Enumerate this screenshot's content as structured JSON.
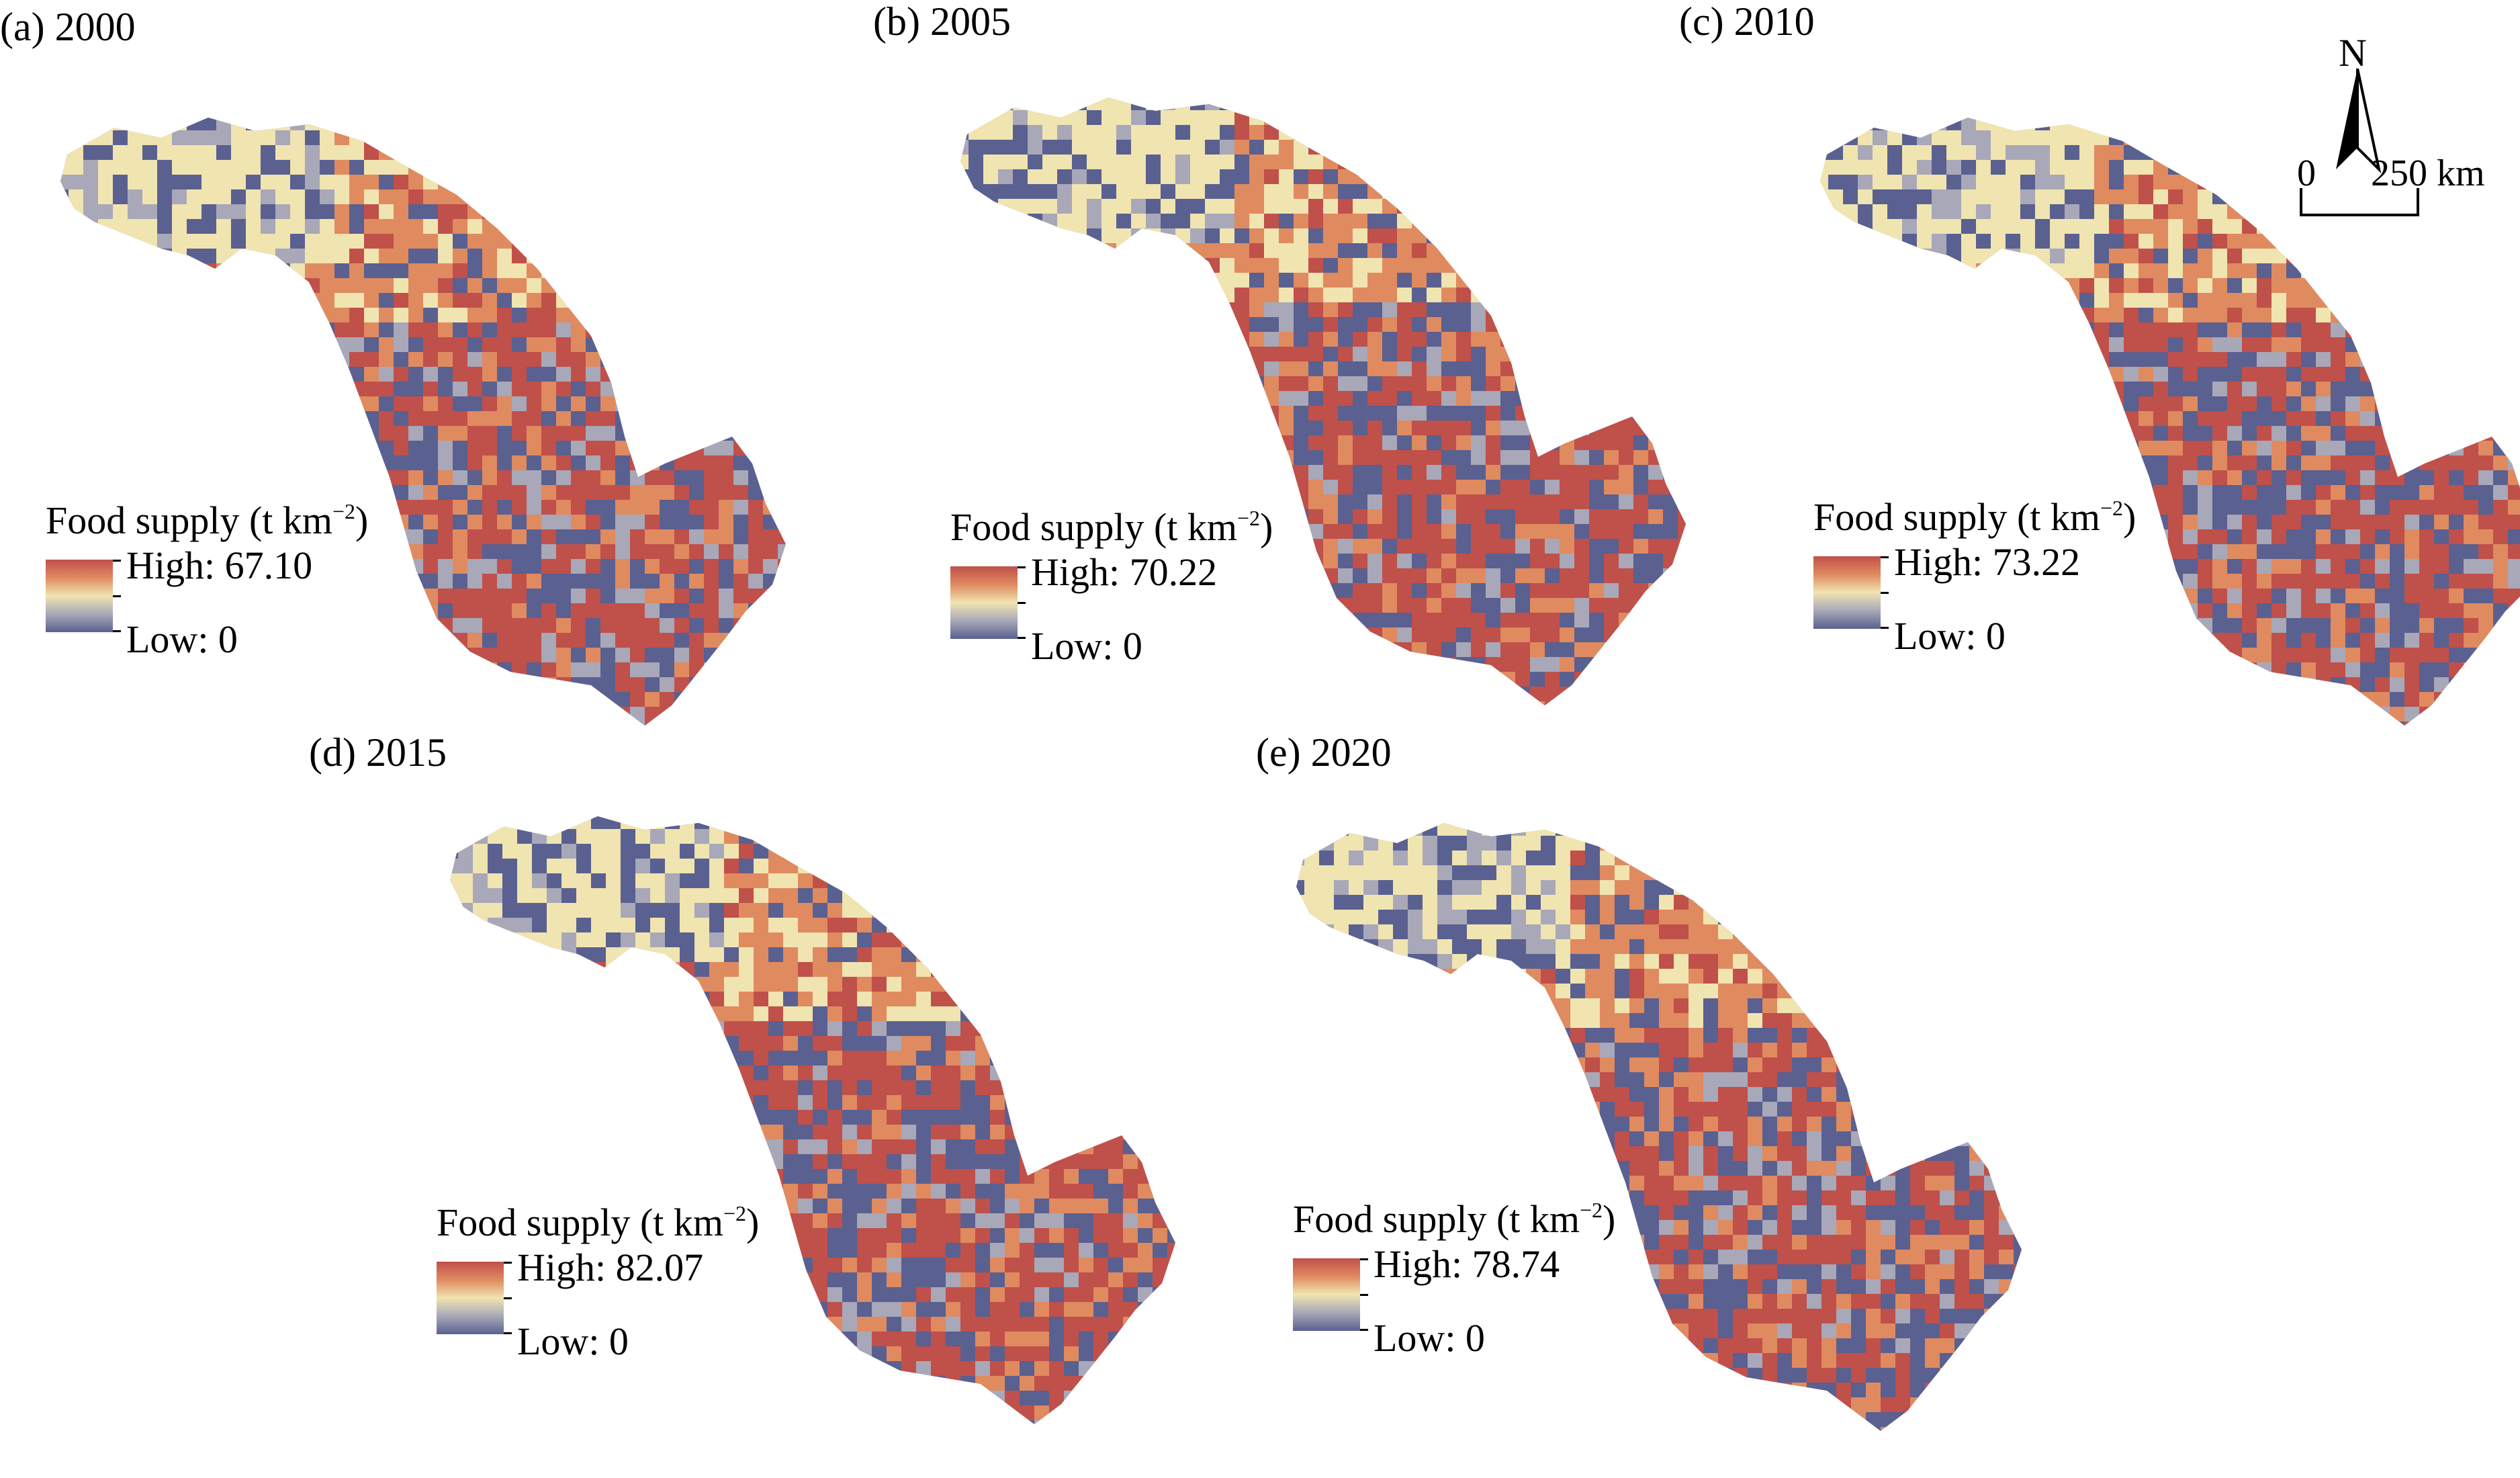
{
  "colors": {
    "high": "#c0504a",
    "mid_high": "#e08a60",
    "mid": "#f0e4b0",
    "mid_low": "#a8a8b8",
    "low": "#5a6090"
  },
  "legend_title_text": "Food supply (t km",
  "legend_title_sup": "−2",
  "legend_title_close": ")",
  "panels": [
    {
      "title": "(a) 2000",
      "high": "High: 67.10",
      "low": "Low: 0"
    },
    {
      "title": "(b) 2005",
      "high": "High: 70.22",
      "low": "Low: 0"
    },
    {
      "title": "(c) 2010",
      "high": "High: 73.22",
      "low": "Low: 0"
    },
    {
      "title": "(d) 2015",
      "high": "High: 82.07",
      "low": "Low: 0"
    },
    {
      "title": "(e) 2020",
      "high": "High: 78.74",
      "low": "Low: 0"
    }
  ],
  "north_arrow": {
    "label": "N",
    "icon": "north-arrow-icon"
  },
  "scale_bar": {
    "start": "0",
    "end": "250 km"
  }
}
